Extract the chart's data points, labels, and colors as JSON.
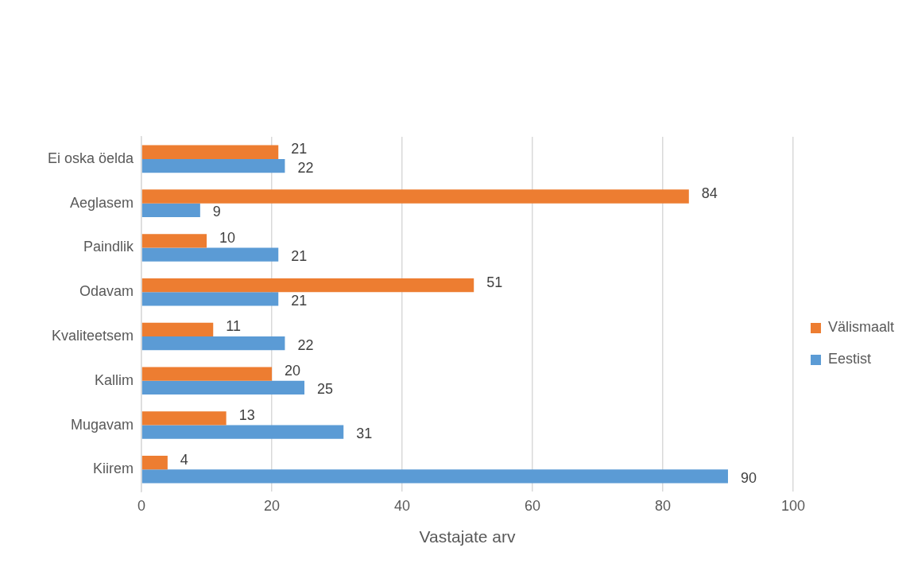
{
  "chart_data": {
    "type": "bar",
    "orientation": "horizontal",
    "xlabel": "Vastajate arv",
    "categories": [
      "Ei oska öelda",
      "Aeglasem",
      "Paindlik",
      "Odavam",
      "Kvaliteetsem",
      "Kallim",
      "Mugavam",
      "Kiirem"
    ],
    "series": [
      {
        "name": "Välismaalt",
        "color": "#ed7d31",
        "values": [
          21,
          84,
          10,
          51,
          11,
          20,
          13,
          4
        ]
      },
      {
        "name": "Eestist",
        "color": "#5b9bd5",
        "values": [
          22,
          9,
          21,
          21,
          22,
          25,
          31,
          90
        ]
      }
    ],
    "xlim": [
      0,
      100
    ],
    "xticks": [
      0,
      20,
      40,
      60,
      80,
      100
    ],
    "grid": "x",
    "legend": "right",
    "data_labels": true
  }
}
